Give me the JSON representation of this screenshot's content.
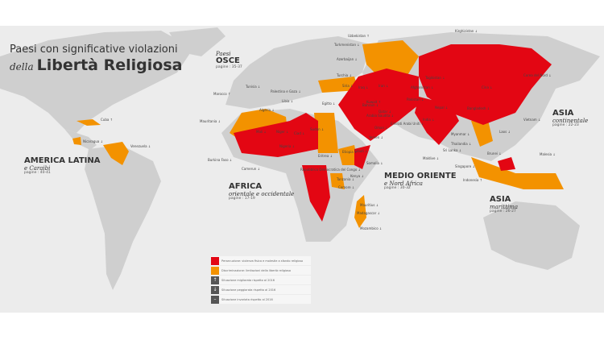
{
  "title": {
    "line1": "Paesi con significative violazioni",
    "prefix": "della",
    "main": "Libertà Religiosa"
  },
  "colors": {
    "persecution": "#e30613",
    "discrimination": "#f39200",
    "land": "#cfcfcf",
    "ocean": "#ececec"
  },
  "regions": [
    {
      "name": "Paesi",
      "sub": "OSCE",
      "pages": "pagine : 35-37"
    },
    {
      "name": "AMERICA LATINA",
      "sub": "e Caraibi",
      "pages": "pagine : 40-41"
    },
    {
      "name": "AFRICA",
      "sub": "orientale e occidentale",
      "pages": "pagine : 17-19"
    },
    {
      "name": "MEDIO ORIENTE",
      "sub": "e Nord Africa",
      "pages": "pagine : 30-32"
    },
    {
      "name": "ASIA",
      "sub": "continentale",
      "pages": "pagine : 22-23"
    },
    {
      "name": "ASIA",
      "sub": "marittima",
      "pages": "pagine : 26-27"
    }
  ],
  "legend": [
    {
      "label": "Persecuzione: violenza fisica e molestie a sfondo religioso",
      "icon": ""
    },
    {
      "label": "Discriminazione: limitazioni della libertà religiosa",
      "icon": ""
    },
    {
      "label": "Situazione migliorata rispetto al 2016",
      "icon": "↑"
    },
    {
      "label": "Situazione peggiorata rispetto al 2016",
      "icon": "↓"
    },
    {
      "label": "Situazione invariata rispetto al 2016",
      "icon": "–"
    }
  ],
  "countries": [
    {
      "name": "Cuba ↑"
    },
    {
      "name": "Nicaragua ↓"
    },
    {
      "name": "Venezuela ↓"
    },
    {
      "name": "Marocco ↑"
    },
    {
      "name": "Mauritania ↓"
    },
    {
      "name": "Tunisia ↓"
    },
    {
      "name": "Palestina e Gaza ↓"
    },
    {
      "name": "Algeria ↓"
    },
    {
      "name": "Libia ↓"
    },
    {
      "name": "Egitto ↓"
    },
    {
      "name": "Mali ↓"
    },
    {
      "name": "Niger ↓"
    },
    {
      "name": "Ciad ↓"
    },
    {
      "name": "Sudan ↓"
    },
    {
      "name": "Nigeria ↓"
    },
    {
      "name": "Burkina Faso ↓"
    },
    {
      "name": "Camerun ↓"
    },
    {
      "name": "Eritrea ↓"
    },
    {
      "name": "Etiopia ↓"
    },
    {
      "name": "Somalia ↓"
    },
    {
      "name": "Gibuti ↓"
    },
    {
      "name": "Yemen ↓"
    },
    {
      "name": "Oman ↓"
    },
    {
      "name": "Repubblica Democratica del Congo ↓"
    },
    {
      "name": "Tanzania ↓"
    },
    {
      "name": "Comore ↓"
    },
    {
      "name": "Kenya ↓"
    },
    {
      "name": "Mauritius ↓"
    },
    {
      "name": "Madagascar ↓"
    },
    {
      "name": "Mozambico ↓"
    },
    {
      "name": "Turchia ↓"
    },
    {
      "name": "Siria ↓"
    },
    {
      "name": "Iraq ↓"
    },
    {
      "name": "Iran ↓"
    },
    {
      "name": "Kuwait ↑"
    },
    {
      "name": "Arabia Saudita ↓"
    },
    {
      "name": "Qatar ↓"
    },
    {
      "name": "Bahrain ↓"
    },
    {
      "name": "Emirati Arabi Uniti ↓"
    },
    {
      "name": "Uzbekistan ↑"
    },
    {
      "name": "Turkmenistan ↓"
    },
    {
      "name": "Azerbaijan ↓"
    },
    {
      "name": "Kirghizistan ↓"
    },
    {
      "name": "Tagikistan ↓"
    },
    {
      "name": "Afghanistan ↓"
    },
    {
      "name": "Pakistan ↓"
    },
    {
      "name": "India ↓"
    },
    {
      "name": "Nepal ↓"
    },
    {
      "name": "Bangladesh ↓"
    },
    {
      "name": "Cina ↓"
    },
    {
      "name": "Corea del Nord ↓"
    },
    {
      "name": "Myanmar ↓"
    },
    {
      "name": "Thailandia ↓"
    },
    {
      "name": "Sri Lanka ↓"
    },
    {
      "name": "Maldive ↓"
    },
    {
      "name": "Laos ↓"
    },
    {
      "name": "Vietnam ↓"
    },
    {
      "name": "Brunei ↓"
    },
    {
      "name": "Malesia ↓"
    },
    {
      "name": "Singapore ↓"
    },
    {
      "name": "Indonesia ↑"
    }
  ]
}
